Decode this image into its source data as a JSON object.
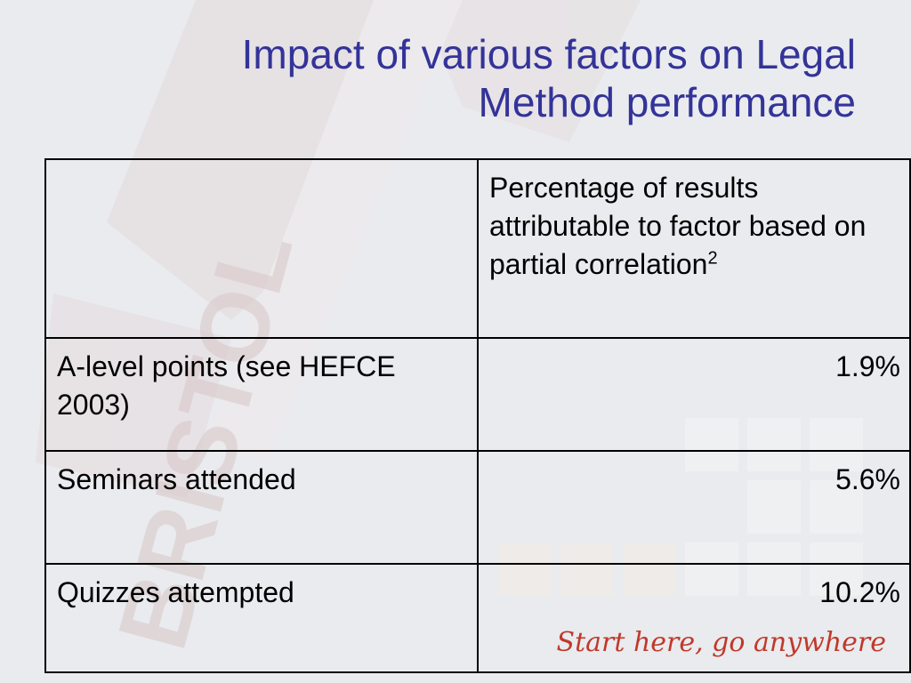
{
  "slide": {
    "title_line1": "Impact of various factors on Legal",
    "title_line2": "Method performance",
    "background_color": "#e9ebee",
    "title_color": "#333399"
  },
  "table": {
    "header": {
      "blank": "",
      "value": "Percentage of results attributable to factor based on partial correlation",
      "superscript": "2"
    },
    "rows": [
      {
        "label": "A-level points (see HEFCE 2003)",
        "value": "1.9%"
      },
      {
        "label": "Seminars attended",
        "value": "5.6%"
      },
      {
        "label": "Quizzes attempted",
        "value": "10.2%"
      }
    ]
  },
  "branding": {
    "watermark_text": "BRISTOL",
    "tagline": "Start here, go anywhere",
    "tagline_color": "#c0392b"
  }
}
